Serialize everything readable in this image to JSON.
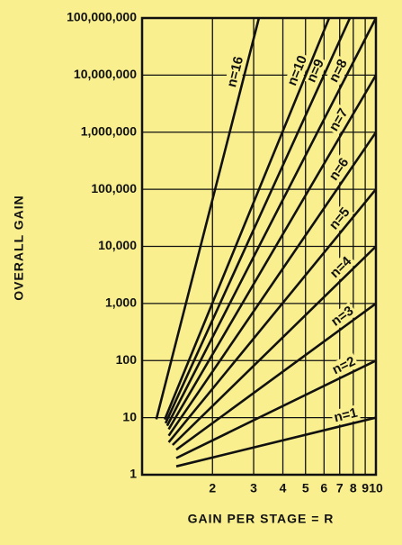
{
  "chart_data": {
    "type": "line",
    "xlabel": "GAIN PER STAGE = R",
    "ylabel": "OVERALL GAIN",
    "xscale": "log",
    "yscale": "log",
    "grid": true,
    "xlim": [
      1,
      10
    ],
    "ylim": [
      1,
      100000000
    ],
    "xticks": [
      2,
      3,
      4,
      5,
      6,
      7,
      8,
      9,
      10
    ],
    "yticks": [
      1,
      10,
      100,
      {
        "value": 1000,
        "label": "1,000"
      },
      {
        "value": 10000,
        "label": "10,000"
      },
      {
        "value": 100000,
        "label": "100,000"
      },
      {
        "value": 1000000,
        "label": "1,000,000"
      },
      {
        "value": 10000000,
        "label": "10,000,000"
      },
      {
        "value": 100000000,
        "label": "100,000,000"
      }
    ],
    "series": [
      {
        "name": "n=1",
        "color": "#111111",
        "x": [
          1.4,
          10
        ],
        "values": [
          1.4,
          10
        ]
      },
      {
        "name": "n=2",
        "color": "#111111",
        "x": [
          1.4,
          10
        ],
        "values": [
          1.96,
          100
        ]
      },
      {
        "name": "n=3",
        "color": "#111111",
        "x": [
          1.4,
          10
        ],
        "values": [
          2.744,
          1000
        ]
      },
      {
        "name": "n=4",
        "color": "#111111",
        "x": [
          1.35,
          10
        ],
        "values": [
          3.32,
          10000
        ]
      },
      {
        "name": "n=5",
        "color": "#111111",
        "x": [
          1.3,
          10
        ],
        "values": [
          3.71,
          100000
        ]
      },
      {
        "name": "n=6",
        "color": "#111111",
        "x": [
          1.3,
          10
        ],
        "values": [
          4.83,
          1000000
        ]
      },
      {
        "name": "n=7",
        "color": "#111111",
        "x": [
          1.3,
          10
        ],
        "values": [
          6.27,
          10000000
        ]
      },
      {
        "name": "n=8",
        "color": "#111111",
        "x": [
          1.28,
          10
        ],
        "values": [
          7.21,
          100000000
        ]
      },
      {
        "name": "n=9",
        "color": "#111111",
        "x": [
          1.26,
          7.74
        ],
        "values": [
          8.0,
          100000000
        ]
      },
      {
        "name": "n=10",
        "color": "#111111",
        "x": [
          1.25,
          6.31
        ],
        "values": [
          9.31,
          100000000
        ]
      },
      {
        "name": "n=16",
        "color": "#111111",
        "x": [
          1.15,
          3.16
        ],
        "values": [
          9.36,
          100000000
        ]
      }
    ]
  }
}
